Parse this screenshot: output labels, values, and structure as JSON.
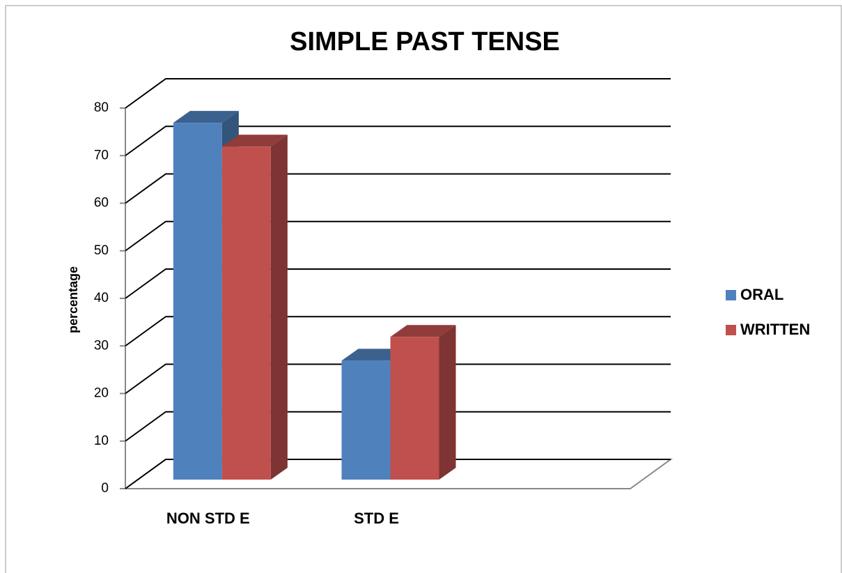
{
  "chart_data": {
    "type": "bar3d",
    "title": "SIMPLE PAST TENSE",
    "ylabel": "percentage",
    "categories": [
      "NON STD E",
      "STD E"
    ],
    "series": [
      {
        "name": "ORAL",
        "color": "#4f81bd",
        "values": [
          75,
          25
        ]
      },
      {
        "name": "WRITTEN",
        "color": "#c0504d",
        "values": [
          70,
          30
        ]
      }
    ],
    "ylim": [
      0,
      80
    ],
    "yticks": [
      0,
      10,
      20,
      30,
      40,
      50,
      60,
      70,
      80
    ],
    "grid": true,
    "legend": "right"
  }
}
